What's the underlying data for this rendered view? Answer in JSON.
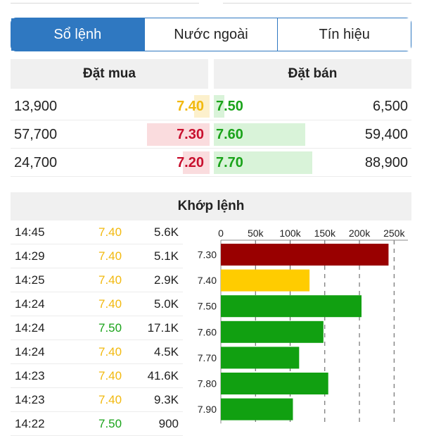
{
  "tabs": [
    {
      "label": "Sổ lệnh",
      "active": true
    },
    {
      "label": "Nước ngoài",
      "active": false
    },
    {
      "label": "Tín hiệu",
      "active": false
    }
  ],
  "order_book": {
    "buy_header": "Đặt mua",
    "sell_header": "Đặt bán",
    "rows": [
      {
        "buy_volume": "13,900",
        "buy_price": "7.40",
        "buy_color": "#f2b90f",
        "buy_bar_color": "#fcf0cc",
        "buy_bar_ratio": 0.24,
        "sell_price": "7.50",
        "sell_color": "#1aa31a",
        "sell_volume": "6,500",
        "sell_bar_ratio": 0.11
      },
      {
        "buy_volume": "57,700",
        "buy_price": "7.30",
        "buy_color": "#c8102e",
        "buy_bar_color": "#fadcde",
        "buy_bar_ratio": 0.97,
        "sell_price": "7.60",
        "sell_color": "#1aa31a",
        "sell_volume": "59,400",
        "sell_bar_ratio": 0.93
      },
      {
        "buy_volume": "24,700",
        "buy_price": "7.20",
        "buy_color": "#c8102e",
        "buy_bar_color": "#fadcde",
        "buy_bar_ratio": 0.41,
        "sell_price": "7.70",
        "sell_color": "#1aa31a",
        "sell_volume": "88,900",
        "sell_bar_ratio": 1.0
      }
    ],
    "sell_bar_color": "#d9f3d9"
  },
  "matching": {
    "title": "Khớp lệnh",
    "trades": [
      {
        "time": "14:45",
        "price": "7.40",
        "color": "#f2b90f",
        "volume": "5.6K"
      },
      {
        "time": "14:29",
        "price": "7.40",
        "color": "#f2b90f",
        "volume": "5.1K"
      },
      {
        "time": "14:25",
        "price": "7.40",
        "color": "#f2b90f",
        "volume": "2.9K"
      },
      {
        "time": "14:24",
        "price": "7.40",
        "color": "#f2b90f",
        "volume": "5.0K"
      },
      {
        "time": "14:24",
        "price": "7.50",
        "color": "#1aa31a",
        "volume": "17.1K"
      },
      {
        "time": "14:24",
        "price": "7.40",
        "color": "#f2b90f",
        "volume": "4.5K"
      },
      {
        "time": "14:23",
        "price": "7.40",
        "color": "#f2b90f",
        "volume": "41.6K"
      },
      {
        "time": "14:23",
        "price": "7.40",
        "color": "#f2b90f",
        "volume": "9.3K"
      },
      {
        "time": "14:22",
        "price": "7.50",
        "color": "#1aa31a",
        "volume": "900"
      }
    ]
  },
  "chart_data": {
    "type": "bar",
    "orientation": "horizontal",
    "title": "",
    "xlabel": "",
    "ylabel": "",
    "xlim": [
      0,
      270000
    ],
    "x_ticks": [
      0,
      50000,
      100000,
      150000,
      200000,
      250000
    ],
    "x_tick_labels": [
      "0",
      "50k",
      "100k",
      "150k",
      "200k",
      "250k"
    ],
    "grid": "vertical dashed",
    "categories": [
      "7.30",
      "7.40",
      "7.50",
      "7.60",
      "7.70",
      "7.80",
      "7.90"
    ],
    "values": [
      242000,
      128000,
      203000,
      148000,
      113000,
      155000,
      104000
    ],
    "colors": [
      "#990000",
      "#ffcc00",
      "#11a011",
      "#11a011",
      "#11a011",
      "#11a011",
      "#11a011"
    ]
  }
}
